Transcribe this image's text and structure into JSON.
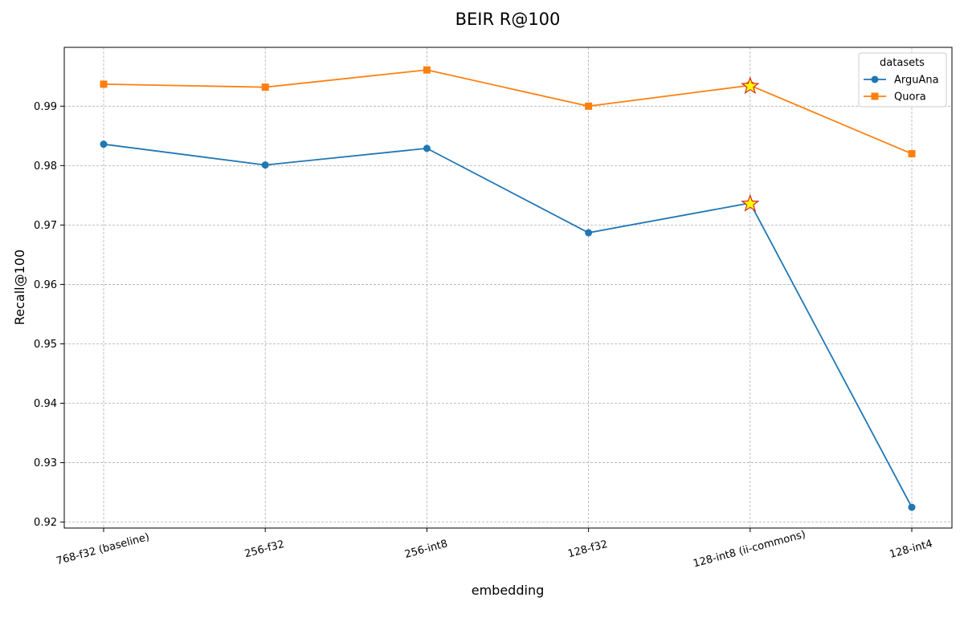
{
  "chart_data": {
    "type": "line",
    "title": "BEIR R@100",
    "xlabel": "embedding",
    "ylabel": "Recall@100",
    "categories": [
      "768-f32 (baseline)",
      "256-f32",
      "256-int8",
      "128-f32",
      "128-int8 (ii-commons)",
      "128-int4"
    ],
    "ylim": [
      0.919,
      0.9999
    ],
    "yticks": [
      "0.92",
      "0.93",
      "0.94",
      "0.95",
      "0.96",
      "0.97",
      "0.98",
      "0.99"
    ],
    "grid": true,
    "legend": {
      "title": "datasets",
      "placement": "top-right"
    },
    "series": [
      {
        "name": "ArguAna",
        "marker": "circle",
        "color": "#1f77b4",
        "values": [
          0.9836,
          0.9801,
          0.9829,
          0.9687,
          0.9737,
          0.9225
        ]
      },
      {
        "name": "Quora",
        "marker": "square",
        "color": "#ff7f0e",
        "values": [
          0.9937,
          0.9932,
          0.9961,
          0.99,
          0.9935,
          0.982
        ]
      }
    ],
    "highlight": {
      "category_index": 4,
      "marker": "star",
      "fill": "#ffff00",
      "stroke": "#d62728"
    }
  }
}
